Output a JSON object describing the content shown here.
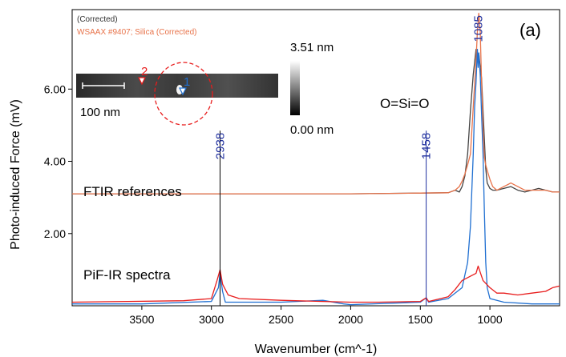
{
  "chart_data": {
    "type": "line",
    "panel_label": "(a)",
    "xlabel": "Wavenumber (cm^-1)",
    "ylabel": "Photo-induced Force (mV)",
    "xlim": [
      4000,
      500
    ],
    "ylim": [
      0,
      8.2
    ],
    "x_reversed": true,
    "x_ticks": [
      3500,
      3000,
      2500,
      2000,
      1500,
      1000
    ],
    "y_ticks": [
      {
        "value": 2,
        "label": "2.00"
      },
      {
        "value": 4,
        "label": "4.00"
      },
      {
        "value": 6,
        "label": "6.00"
      }
    ],
    "legend": [
      {
        "text": "(Corrected)",
        "color": "#333333"
      },
      {
        "text": "WSAAX #9407; Silica (Corrected)",
        "color": "#e8734a"
      }
    ],
    "annotations": {
      "ftir": "FTIR references",
      "pif": "PiF-IR spectra",
      "molecule": "O=Si=O"
    },
    "peak_markers": [
      {
        "x": 2938,
        "label": "2938",
        "y_top": 4.85
      },
      {
        "x": 1458,
        "label": "1458",
        "y_top": 4.85
      },
      {
        "x": 1085,
        "label": "1085",
        "y_top": 8.1
      }
    ],
    "inset": {
      "scale_bar_label": "100 nm",
      "colorbar_max": "3.51 nm",
      "colorbar_min": "0.00 nm",
      "marker_1": "1",
      "marker_2": "2"
    },
    "series": [
      {
        "color": "#444444",
        "x": [
          4000,
          3500,
          3000,
          2500,
          2000,
          1500,
          1300,
          1250,
          1220,
          1200,
          1180,
          1160,
          1140,
          1120,
          1100,
          1090,
          1080,
          1070,
          1060,
          1050,
          1040,
          1030,
          1020,
          1000,
          980,
          950,
          900,
          850,
          800,
          750,
          700,
          650,
          600,
          550,
          500
        ],
        "y": [
          3.1,
          3.1,
          3.1,
          3.1,
          3.1,
          3.12,
          3.13,
          3.2,
          3.15,
          3.3,
          3.6,
          4.2,
          5.4,
          6.4,
          7.1,
          6.8,
          7.0,
          6.6,
          6.3,
          5.4,
          4.6,
          3.8,
          3.4,
          3.25,
          3.2,
          3.2,
          3.25,
          3.3,
          3.2,
          3.15,
          3.2,
          3.25,
          3.2,
          3.15,
          3.15
        ]
      },
      {
        "color": "#e8734a",
        "x": [
          4000,
          3500,
          3000,
          2500,
          2000,
          1500,
          1300,
          1250,
          1220,
          1200,
          1180,
          1160,
          1140,
          1120,
          1100,
          1090,
          1080,
          1070,
          1060,
          1050,
          1040,
          1030,
          1020,
          1000,
          980,
          950,
          900,
          850,
          800,
          750,
          700,
          650,
          600,
          550,
          500
        ],
        "y": [
          3.1,
          3.1,
          3.1,
          3.1,
          3.1,
          3.12,
          3.13,
          3.2,
          3.3,
          3.45,
          3.65,
          3.9,
          4.2,
          5.5,
          6.8,
          7.6,
          8.1,
          7.6,
          6.2,
          4.9,
          4.1,
          3.9,
          3.75,
          3.5,
          3.3,
          3.2,
          3.3,
          3.4,
          3.3,
          3.2,
          3.2,
          3.2,
          3.2,
          3.15,
          3.15
        ]
      },
      {
        "color": "#1f6fd1",
        "x": [
          4000,
          3500,
          3000,
          2950,
          2938,
          2920,
          2900,
          2500,
          2200,
          2050,
          2000,
          1500,
          1458,
          1440,
          1300,
          1200,
          1160,
          1140,
          1120,
          1110,
          1100,
          1090,
          1085,
          1080,
          1070,
          1060,
          1050,
          1040,
          1030,
          1020,
          1000,
          900,
          700,
          500
        ],
        "y": [
          0.05,
          0.05,
          0.12,
          0.5,
          0.9,
          0.4,
          0.1,
          0.1,
          0.15,
          0.05,
          0.03,
          0.1,
          0.22,
          0.1,
          0.2,
          0.5,
          1.2,
          2.2,
          4.2,
          5.5,
          6.2,
          7.1,
          6.6,
          7.0,
          6.4,
          5.3,
          4.2,
          2.6,
          1.2,
          0.5,
          0.2,
          0.1,
          0.05,
          0.05
        ]
      },
      {
        "color": "#e81c1c",
        "x": [
          4000,
          3600,
          3200,
          3000,
          2960,
          2938,
          2920,
          2880,
          2800,
          2500,
          2200,
          2000,
          1800,
          1500,
          1458,
          1440,
          1300,
          1250,
          1200,
          1150,
          1100,
          1085,
          1050,
          1000,
          950,
          900,
          800,
          700,
          600,
          550,
          500
        ],
        "y": [
          0.1,
          0.12,
          0.14,
          0.2,
          0.7,
          1.0,
          0.6,
          0.3,
          0.2,
          0.15,
          0.12,
          0.1,
          0.1,
          0.12,
          0.22,
          0.12,
          0.25,
          0.45,
          0.7,
          0.8,
          0.9,
          1.1,
          0.7,
          0.5,
          0.35,
          0.35,
          0.3,
          0.35,
          0.4,
          0.5,
          0.55
        ]
      }
    ]
  }
}
